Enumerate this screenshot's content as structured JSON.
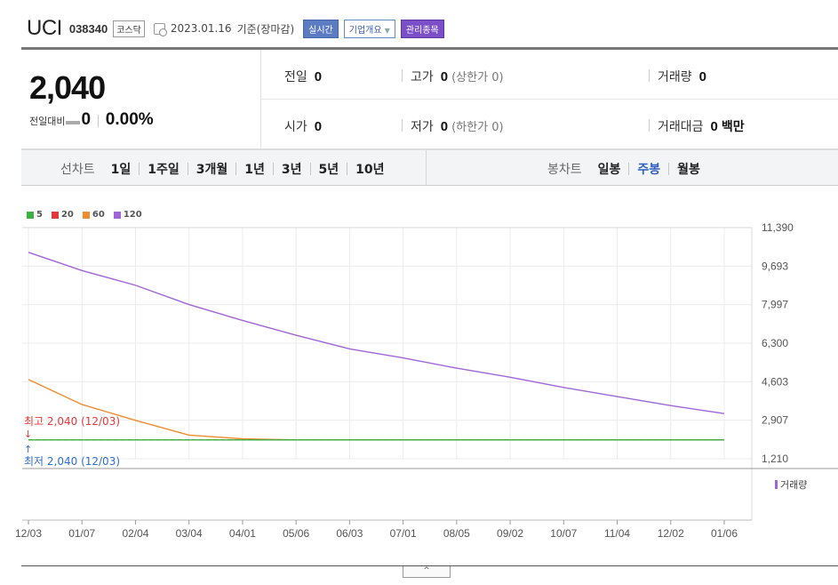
{
  "header": {
    "name": "UCI",
    "code": "038340",
    "market": "코스닥",
    "date": "2023.01.16",
    "basis": "기준(장마감)",
    "btn_realtime": "실시간",
    "btn_company": "기업개요",
    "btn_manage": "관리종목",
    "colors": {
      "realtime": "#5b7bc3",
      "manage": "#7a4fc7"
    }
  },
  "quote": {
    "price": "2,040",
    "change_label": "전일대비",
    "change_value": "0",
    "change_pct": "0.00%",
    "prev_label": "전일",
    "prev_value": "0",
    "high_label": "고가",
    "high_value": "0",
    "high_sub": "(상한가 0)",
    "volume_label": "거래량",
    "volume_value": "0",
    "open_label": "시가",
    "open_value": "0",
    "low_label": "저가",
    "low_value": "0",
    "low_sub": "(하한가 0)",
    "amount_label": "거래대금",
    "amount_value": "0",
    "amount_unit": "백만"
  },
  "period": {
    "line_title": "선차트",
    "line_options": [
      "1일",
      "1주일",
      "3개월",
      "1년",
      "3년",
      "5년",
      "10년"
    ],
    "candle_title": "봉차트",
    "candle_options": [
      "일봉",
      "주봉",
      "월봉"
    ],
    "candle_active": "주봉"
  },
  "chart_data": {
    "type": "line",
    "title": "",
    "xlabel": "",
    "ylabel": "",
    "x": [
      "12/03",
      "01/07",
      "02/04",
      "03/04",
      "04/01",
      "05/06",
      "06/03",
      "07/01",
      "08/05",
      "09/02",
      "10/07",
      "11/04",
      "12/02",
      "01/06"
    ],
    "ylim": [
      1210,
      11390
    ],
    "yticks": [
      "11,390",
      "9,693",
      "7,997",
      "6,300",
      "4,603",
      "2,907",
      "1,210"
    ],
    "series": [
      {
        "name": "5",
        "color": "#3cb043",
        "values": [
          2040,
          2040,
          2040,
          2040,
          2040,
          2040,
          2040,
          2040,
          2040,
          2040,
          2040,
          2040,
          2040,
          2040
        ]
      },
      {
        "name": "20",
        "color": "#e03a3a",
        "values": [
          2040,
          2040,
          2040,
          2040,
          2040,
          2040,
          2040,
          2040,
          2040,
          2040,
          2040,
          2040,
          2040,
          2040
        ]
      },
      {
        "name": "60",
        "color": "#f08c2c",
        "values": [
          4700,
          3600,
          2900,
          2250,
          2090,
          2040,
          2040,
          2040,
          2040,
          2040,
          2040,
          2040,
          2040,
          2040
        ]
      },
      {
        "name": "120",
        "color": "#a066d8",
        "values": [
          10300,
          9500,
          8850,
          8000,
          7300,
          6650,
          6050,
          5650,
          5200,
          4800,
          4350,
          3950,
          3550,
          3200
        ]
      }
    ],
    "annotations": {
      "high_text": "최고 2,040 (12/03)",
      "low_text": "최저 2,040 (12/03)",
      "high_color": "#e03a3a",
      "low_color": "#2f6fd0"
    },
    "volume_legend": "거래량",
    "volume_color": "#a066d8",
    "grid": true,
    "legend_position": "top-left"
  },
  "toggle_label": "^"
}
